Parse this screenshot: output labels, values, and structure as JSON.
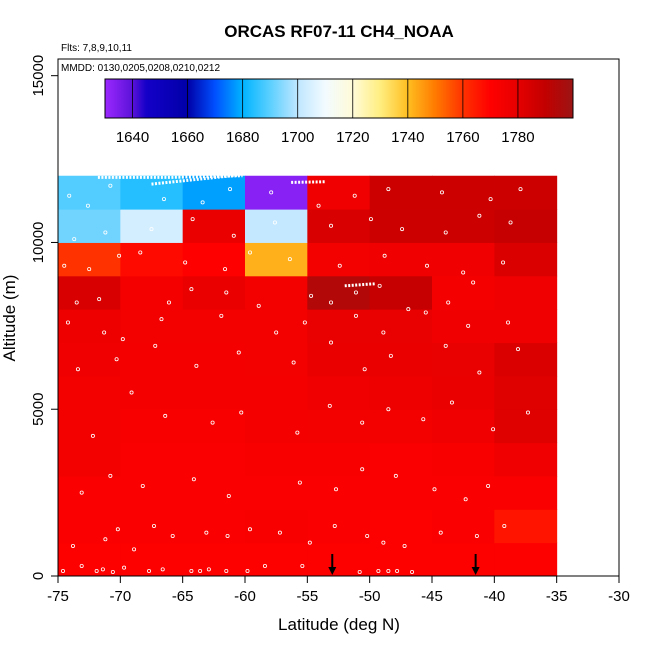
{
  "chart_data": {
    "type": "heatmap",
    "title": "ORCAS RF07-11 CH4_NOAA",
    "notes": [
      "Flts: 7,8,9,10,11",
      "MMDD: 0130,0205,0208,0210,0212"
    ],
    "xlabel": "Latitude (deg N)",
    "ylabel": "Altitude (m)",
    "xlim": [
      -75,
      -30
    ],
    "ylim": [
      0,
      15500
    ],
    "xticks": [
      -75,
      -70,
      -65,
      -60,
      -55,
      -50,
      -45,
      -40,
      -35,
      -30
    ],
    "yticks": [
      0,
      5000,
      10000,
      15000
    ],
    "colorbar": {
      "min": 1630,
      "max": 1800,
      "ticks": [
        1640,
        1660,
        1680,
        1700,
        1720,
        1740,
        1760,
        1780
      ],
      "stops": [
        [
          1630,
          "#9c28ff"
        ],
        [
          1640,
          "#5a12d8"
        ],
        [
          1645,
          "#1400c8"
        ],
        [
          1660,
          "#0000a8"
        ],
        [
          1670,
          "#0050ff"
        ],
        [
          1680,
          "#00b4ff"
        ],
        [
          1690,
          "#5cd0ff"
        ],
        [
          1700,
          "#bfe6ff"
        ],
        [
          1710,
          "#f2fbff"
        ],
        [
          1720,
          "#fffbd8"
        ],
        [
          1730,
          "#ffee80"
        ],
        [
          1740,
          "#ffbe20"
        ],
        [
          1750,
          "#ff7a00"
        ],
        [
          1760,
          "#ff3200"
        ],
        [
          1770,
          "#ff0000"
        ],
        [
          1780,
          "#e60000"
        ],
        [
          1790,
          "#c20000"
        ],
        [
          1800,
          "#9c1414"
        ]
      ]
    },
    "lat_edges": [
      -75,
      -70,
      -65,
      -60,
      -55,
      -50,
      -45,
      -40,
      -35
    ],
    "alt_edges": [
      0,
      1000,
      2000,
      3000,
      4000,
      5000,
      6000,
      7000,
      8000,
      9000,
      10000,
      11000,
      12000
    ],
    "cells_ch4": [
      [
        1771,
        1771,
        1771,
        1771,
        1771,
        1771,
        1771,
        1771
      ],
      [
        1772,
        1772,
        1772,
        1773,
        1772,
        1771,
        1772,
        1766
      ],
      [
        1772,
        1772,
        1772,
        1772,
        1772,
        1772,
        1772,
        1772
      ],
      [
        1775,
        1772,
        1772,
        1773,
        1773,
        1772,
        1773,
        1776
      ],
      [
        1775,
        1773,
        1773,
        1774,
        1775,
        1775,
        1776,
        1782
      ],
      [
        1775,
        1774,
        1774,
        1774,
        1776,
        1777,
        1778,
        1782
      ],
      [
        1776,
        1774,
        1774,
        1775,
        1778,
        1778,
        1779,
        1783
      ],
      [
        1777,
        1775,
        1775,
        1775,
        1779,
        1779,
        1776,
        1776
      ],
      [
        1784,
        1774,
        1778,
        1775,
        1794,
        1789,
        1774,
        1776
      ],
      [
        1760,
        1768,
        1770,
        1742,
        1775,
        1776,
        1776,
        1783
      ],
      [
        1692,
        1704,
        1778,
        1701,
        1784,
        1787,
        1787,
        1789
      ],
      [
        1689,
        1684,
        1678,
        1633,
        1776,
        1787,
        1787,
        1787
      ]
    ],
    "arrows_lat": [
      -53,
      -41.5
    ],
    "samples": [
      [
        -74.6,
        150
      ],
      [
        -73.1,
        300
      ],
      [
        -71.9,
        150
      ],
      [
        -71.4,
        200
      ],
      [
        -70.6,
        120
      ],
      [
        -69.7,
        250
      ],
      [
        -67.7,
        150
      ],
      [
        -66.6,
        200
      ],
      [
        -64.3,
        150
      ],
      [
        -63.6,
        150
      ],
      [
        -62.9,
        200
      ],
      [
        -61.5,
        150
      ],
      [
        -59.8,
        150
      ],
      [
        -58.4,
        300
      ],
      [
        -55.4,
        300
      ],
      [
        -50.8,
        120
      ],
      [
        -49.3,
        150
      ],
      [
        -48.5,
        150
      ],
      [
        -47.8,
        150
      ],
      [
        -46.6,
        120
      ],
      [
        -73.8,
        900
      ],
      [
        -71.2,
        1100
      ],
      [
        -70.2,
        1400
      ],
      [
        -68.9,
        800
      ],
      [
        -67.3,
        1500
      ],
      [
        -65.8,
        1200
      ],
      [
        -63.1,
        1300
      ],
      [
        -61.4,
        1200
      ],
      [
        -59.6,
        1400
      ],
      [
        -57.2,
        1300
      ],
      [
        -54.8,
        1000
      ],
      [
        -52.8,
        1500
      ],
      [
        -50.2,
        1200
      ],
      [
        -48.9,
        1000
      ],
      [
        -47.2,
        900
      ],
      [
        -44.3,
        1300
      ],
      [
        -41.4,
        1200
      ],
      [
        -39.2,
        1500
      ],
      [
        -73.1,
        2500
      ],
      [
        -70.8,
        3000
      ],
      [
        -68.2,
        2700
      ],
      [
        -64.1,
        2900
      ],
      [
        -61.3,
        2400
      ],
      [
        -55.6,
        2800
      ],
      [
        -52.7,
        2600
      ],
      [
        -50.6,
        3200
      ],
      [
        -47.9,
        3000
      ],
      [
        -44.8,
        2600
      ],
      [
        -42.3,
        2300
      ],
      [
        -40.5,
        2700
      ],
      [
        -72.2,
        4200
      ],
      [
        -69.1,
        5500
      ],
      [
        -66.4,
        4800
      ],
      [
        -62.6,
        4600
      ],
      [
        -60.3,
        4900
      ],
      [
        -55.8,
        4300
      ],
      [
        -53.2,
        5100
      ],
      [
        -50.6,
        4600
      ],
      [
        -48.5,
        5000
      ],
      [
        -45.7,
        4700
      ],
      [
        -43.4,
        5200
      ],
      [
        -40.1,
        4400
      ],
      [
        -37.3,
        4900
      ],
      [
        -73.4,
        6200
      ],
      [
        -70.3,
        6500
      ],
      [
        -67.2,
        6900
      ],
      [
        -63.9,
        6300
      ],
      [
        -60.5,
        6700
      ],
      [
        -56.1,
        6400
      ],
      [
        -53.1,
        7000
      ],
      [
        -50.4,
        6200
      ],
      [
        -48.3,
        6600
      ],
      [
        -43.9,
        6900
      ],
      [
        -41.2,
        6100
      ],
      [
        -38.1,
        6800
      ],
      [
        -74.2,
        7600
      ],
      [
        -71.3,
        7300
      ],
      [
        -69.8,
        7100
      ],
      [
        -66.7,
        7700
      ],
      [
        -61.9,
        7800
      ],
      [
        -57.5,
        7300
      ],
      [
        -55.2,
        7600
      ],
      [
        -51.1,
        7800
      ],
      [
        -48.9,
        7300
      ],
      [
        -45.5,
        7900
      ],
      [
        -42.1,
        7500
      ],
      [
        -38.9,
        7600
      ],
      [
        -73.5,
        8200
      ],
      [
        -71.7,
        8300
      ],
      [
        -66.1,
        8200
      ],
      [
        -64.3,
        8600
      ],
      [
        -61.5,
        8500
      ],
      [
        -58.9,
        8100
      ],
      [
        -54.7,
        8400
      ],
      [
        -53.1,
        8200
      ],
      [
        -51.1,
        8500
      ],
      [
        -49.2,
        8700
      ],
      [
        -46.9,
        8000
      ],
      [
        -43.7,
        8200
      ],
      [
        -41.7,
        8800
      ],
      [
        -74.5,
        9300
      ],
      [
        -72.5,
        9200
      ],
      [
        -70.1,
        9600
      ],
      [
        -68.4,
        9700
      ],
      [
        -64.8,
        9400
      ],
      [
        -61.6,
        9200
      ],
      [
        -59.6,
        9700
      ],
      [
        -56.4,
        9500
      ],
      [
        -52.4,
        9300
      ],
      [
        -48.8,
        9600
      ],
      [
        -45.4,
        9300
      ],
      [
        -42.5,
        9100
      ],
      [
        -39.3,
        9400
      ],
      [
        -73.7,
        10100
      ],
      [
        -71.2,
        10300
      ],
      [
        -67.5,
        10400
      ],
      [
        -64.2,
        10700
      ],
      [
        -60.9,
        10200
      ],
      [
        -57.6,
        10600
      ],
      [
        -53.1,
        10500
      ],
      [
        -49.9,
        10700
      ],
      [
        -47.4,
        10400
      ],
      [
        -43.9,
        10300
      ],
      [
        -41.2,
        10800
      ],
      [
        -38.7,
        10600
      ],
      [
        -74.1,
        11400
      ],
      [
        -72.6,
        11100
      ],
      [
        -70.8,
        11700
      ],
      [
        -66.5,
        11300
      ],
      [
        -63.4,
        11200
      ],
      [
        -61.2,
        11600
      ],
      [
        -57.9,
        11500
      ],
      [
        -54.1,
        11100
      ],
      [
        -51.2,
        11400
      ],
      [
        -48.5,
        11600
      ],
      [
        -44.2,
        11500
      ],
      [
        -40.3,
        11300
      ],
      [
        -37.9,
        11600
      ]
    ],
    "tracks": [
      [
        [
          -71.8,
          11950
        ],
        [
          -66.0,
          11950
        ],
        [
          -60.2,
          12000
        ]
      ],
      [
        [
          -67.5,
          11750
        ],
        [
          -60.5,
          12020
        ]
      ],
      [
        [
          -56.3,
          11800
        ],
        [
          -53.5,
          11820
        ]
      ],
      [
        [
          -52.0,
          8700
        ],
        [
          -49.6,
          8760
        ]
      ]
    ]
  }
}
